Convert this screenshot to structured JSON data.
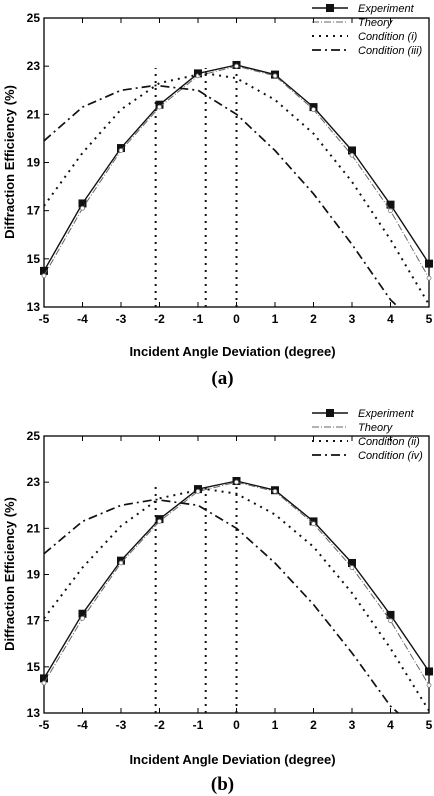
{
  "chart_data": [
    {
      "type": "line",
      "panel_label": "(a)",
      "xlabel": "Incident Angle Deviation (degree)",
      "ylabel": "Diffraction Efficiency (%)",
      "xlim": [
        -5,
        5
      ],
      "ylim": [
        13,
        25
      ],
      "xticks": [
        -5,
        -4,
        -3,
        -2,
        -1,
        0,
        1,
        2,
        3,
        4,
        5
      ],
      "yticks": [
        13,
        15,
        17,
        19,
        21,
        23,
        25
      ],
      "legend_position": "top-right",
      "series": [
        {
          "name": "Experiment",
          "style": "solid-square",
          "x": [
            -5,
            -4,
            -3,
            -2,
            -1,
            0,
            1,
            2,
            3,
            4,
            5
          ],
          "y": [
            14.5,
            17.3,
            19.6,
            21.4,
            22.7,
            23.05,
            22.65,
            21.3,
            19.5,
            17.25,
            14.8
          ]
        },
        {
          "name": "Theory",
          "style": "thin-gray",
          "x": [
            -5,
            -4,
            -3,
            -2,
            -1,
            0,
            1,
            2,
            3,
            4,
            5
          ],
          "y": [
            14.3,
            17.1,
            19.5,
            21.3,
            22.6,
            23.0,
            22.6,
            21.2,
            19.3,
            17.0,
            14.2
          ]
        },
        {
          "name": "Condition (i)",
          "style": "dotted",
          "x": [
            -5,
            -4,
            -3,
            -2,
            -1,
            -0.8,
            0,
            1,
            2,
            3,
            4,
            5
          ],
          "y": [
            17.2,
            19.4,
            21.2,
            22.3,
            22.65,
            22.7,
            22.5,
            21.6,
            20.2,
            18.2,
            15.8,
            13.1
          ]
        },
        {
          "name": "Condition (iii)",
          "style": "dash-dot",
          "x": [
            -5,
            -4,
            -3,
            -2.1,
            -1,
            0,
            1,
            2,
            3,
            4,
            4.2
          ],
          "y": [
            19.9,
            21.3,
            22.0,
            22.2,
            22.0,
            21.0,
            19.5,
            17.7,
            15.6,
            13.3,
            13.0
          ]
        }
      ],
      "vertical_markers": [
        -2.1,
        -0.8,
        0
      ]
    },
    {
      "type": "line",
      "panel_label": "(b)",
      "xlabel": "Incident Angle Deviation (degree)",
      "ylabel": "Diffraction Efficiency (%)",
      "xlim": [
        -5,
        5
      ],
      "ylim": [
        13,
        25
      ],
      "xticks": [
        -5,
        -4,
        -3,
        -2,
        -1,
        0,
        1,
        2,
        3,
        4,
        5
      ],
      "yticks": [
        13,
        15,
        17,
        19,
        21,
        23,
        25
      ],
      "legend_position": "top-right",
      "series": [
        {
          "name": "Experiment",
          "style": "solid-square",
          "x": [
            -5,
            -4,
            -3,
            -2,
            -1,
            0,
            1,
            2,
            3,
            4,
            5
          ],
          "y": [
            14.5,
            17.3,
            19.6,
            21.4,
            22.7,
            23.05,
            22.65,
            21.3,
            19.5,
            17.25,
            14.8
          ]
        },
        {
          "name": "Theory",
          "style": "thin-gray",
          "x": [
            -5,
            -4,
            -3,
            -2,
            -1,
            0,
            1,
            2,
            3,
            4,
            5
          ],
          "y": [
            14.3,
            17.1,
            19.5,
            21.3,
            22.6,
            23.0,
            22.6,
            21.2,
            19.3,
            17.0,
            14.2
          ]
        },
        {
          "name": "Condition (ii)",
          "style": "dotted",
          "x": [
            -5,
            -4,
            -3,
            -2,
            -1,
            -0.8,
            0,
            1,
            2,
            3,
            4,
            5
          ],
          "y": [
            17.1,
            19.3,
            21.1,
            22.3,
            22.65,
            22.7,
            22.5,
            21.6,
            20.2,
            18.2,
            15.8,
            13.1
          ]
        },
        {
          "name": "Condition (iv)",
          "style": "dash-dot",
          "x": [
            -5,
            -4,
            -3,
            -2.1,
            -1,
            0,
            1,
            2,
            3,
            4,
            4.2
          ],
          "y": [
            19.9,
            21.3,
            22.0,
            22.25,
            22.0,
            21.0,
            19.5,
            17.7,
            15.6,
            13.3,
            13.0
          ]
        }
      ],
      "vertical_markers": [
        -2.1,
        -0.8,
        0
      ]
    }
  ]
}
